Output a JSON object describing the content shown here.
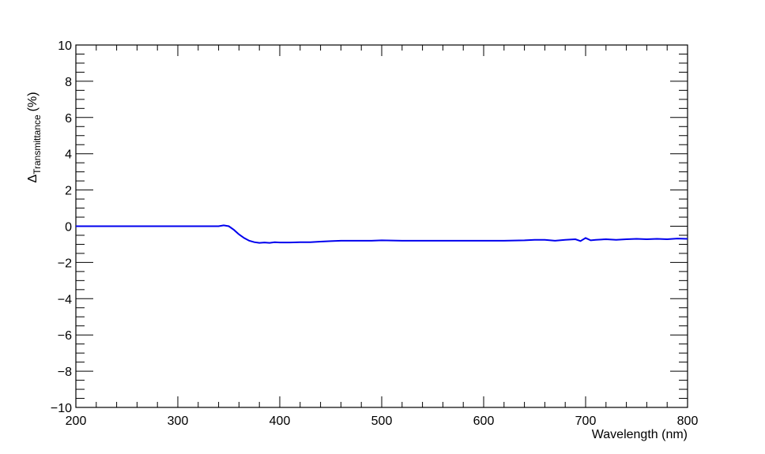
{
  "chart_data": {
    "type": "line",
    "xlabel": "Wavelength (nm)",
    "ylabel_main": "Δ",
    "ylabel_sub": "Transmittance",
    "ylabel_unit": "(%)",
    "xlim": [
      200,
      800
    ],
    "ylim": [
      -10,
      10
    ],
    "x_ticks": [
      200,
      300,
      400,
      500,
      600,
      700,
      800
    ],
    "y_ticks": [
      -10,
      -8,
      -6,
      -4,
      -2,
      0,
      2,
      4,
      6,
      8,
      10
    ],
    "x_tick_labels": [
      "200",
      "300",
      "400",
      "500",
      "600",
      "700",
      "800"
    ],
    "y_tick_labels": [
      "−10",
      "−8",
      "−6",
      "−4",
      "−2",
      "0",
      "2",
      "4",
      "6",
      "8",
      "10"
    ],
    "grid": false,
    "line_color": "#0000ee",
    "series": [
      {
        "x": [
          200,
          250,
          300,
          340,
          345,
          350,
          355,
          360,
          365,
          370,
          375,
          380,
          385,
          390,
          395,
          400,
          410,
          420,
          430,
          440,
          450,
          460,
          470,
          480,
          490,
          500,
          520,
          540,
          560,
          580,
          600,
          620,
          640,
          650,
          660,
          670,
          680,
          690,
          695,
          700,
          705,
          710,
          720,
          730,
          740,
          750,
          760,
          770,
          780,
          790,
          800
        ],
        "values": [
          0.0,
          0.0,
          0.0,
          0.0,
          0.05,
          0.0,
          -0.2,
          -0.45,
          -0.65,
          -0.8,
          -0.88,
          -0.92,
          -0.9,
          -0.92,
          -0.88,
          -0.9,
          -0.9,
          -0.88,
          -0.88,
          -0.85,
          -0.82,
          -0.8,
          -0.8,
          -0.8,
          -0.8,
          -0.78,
          -0.8,
          -0.8,
          -0.8,
          -0.8,
          -0.8,
          -0.8,
          -0.78,
          -0.75,
          -0.75,
          -0.8,
          -0.75,
          -0.72,
          -0.82,
          -0.65,
          -0.78,
          -0.75,
          -0.72,
          -0.75,
          -0.72,
          -0.7,
          -0.72,
          -0.7,
          -0.72,
          -0.68,
          -0.7
        ]
      }
    ]
  }
}
